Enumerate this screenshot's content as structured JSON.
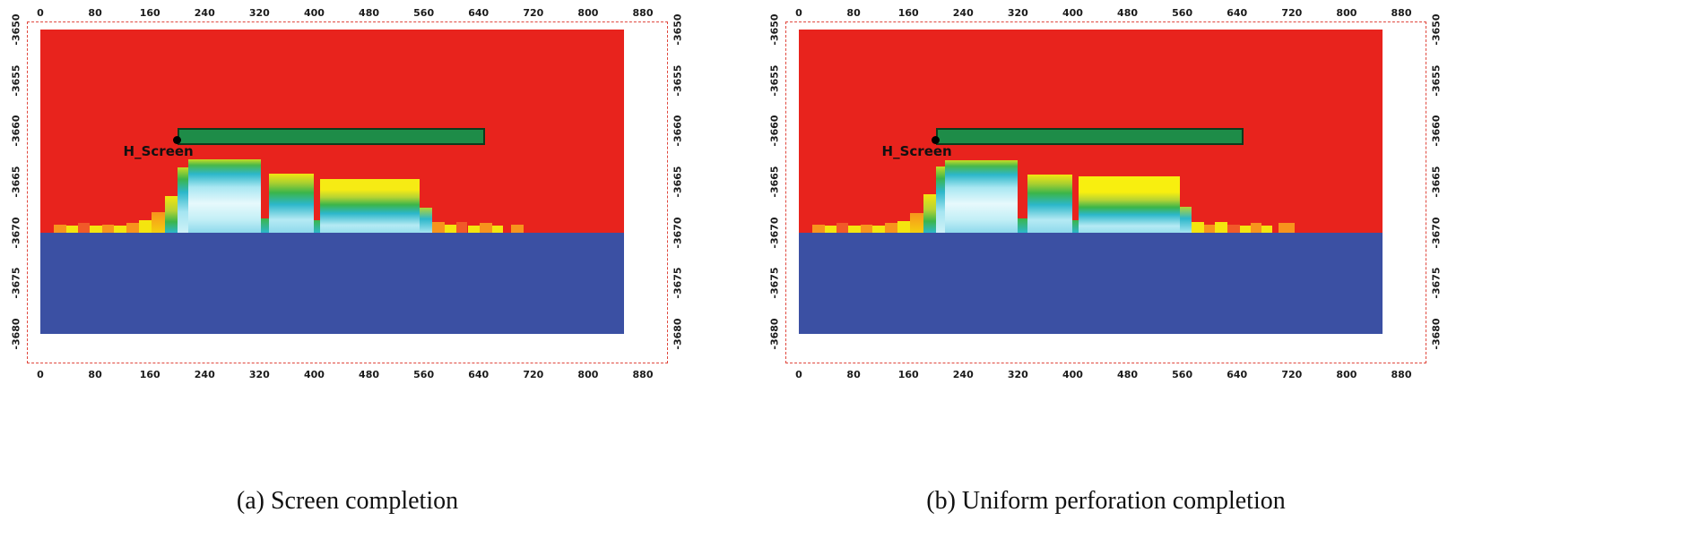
{
  "colors": {
    "frame_dashed": "#e0473d",
    "upper_region_red": "#e8231d",
    "lower_region_blue": "#3b50a3",
    "screen_green": "#1e8c48",
    "screen_border": "#0d3a1c",
    "tick_text": "#1a1a1a"
  },
  "chart_data": [
    {
      "type": "heatmap",
      "title": "(a) Screen completion",
      "xlabel": "",
      "ylabel": "",
      "xlim": [
        0,
        880
      ],
      "ylim": [
        -3680,
        -3650
      ],
      "grid": false,
      "x_ticks": [
        0,
        80,
        160,
        240,
        320,
        400,
        480,
        560,
        640,
        720,
        800,
        880
      ],
      "y_ticks": [
        -3650,
        -3655,
        -3660,
        -3665,
        -3670,
        -3675,
        -3680
      ],
      "regions": [
        {
          "name": "upper-red-region",
          "x0": 0,
          "x1": 852,
          "yt": -3650,
          "yb": -3670,
          "fill": "#e8231d"
        },
        {
          "name": "lower-blue-region",
          "x0": 0,
          "x1": 852,
          "yt": -3670,
          "yb": -3680,
          "fill": "#3b50a3"
        }
      ],
      "well_screen": {
        "label": "H_Screen",
        "x0": 200,
        "x1": 650,
        "yt": -3659.7,
        "yb": -3661.4,
        "fill": "#1e8c48",
        "border": "#0d3a1c",
        "marker": {
          "x": 200,
          "y": -3660.9
        }
      },
      "cells": [
        {
          "x0": 20,
          "x1": 38,
          "yt": -3669.2,
          "yb": -3670,
          "fill": "#f7941d"
        },
        {
          "x0": 38,
          "x1": 55,
          "yt": -3669.3,
          "yb": -3670,
          "fill": "#f4e50f"
        },
        {
          "x0": 55,
          "x1": 72,
          "yt": -3669.1,
          "yb": -3670,
          "fill": "#f15a29"
        },
        {
          "x0": 72,
          "x1": 90,
          "yt": -3669.3,
          "yb": -3670,
          "fill": "#f4e50f"
        },
        {
          "x0": 90,
          "x1": 108,
          "yt": -3669.2,
          "yb": -3670,
          "fill": "#f7941d"
        },
        {
          "x0": 108,
          "x1": 126,
          "yt": -3669.3,
          "yb": -3670,
          "fill": "#f4e50f"
        },
        {
          "x0": 126,
          "x1": 144,
          "yt": -3669.1,
          "yb": -3670,
          "fill": "#f7941d"
        },
        {
          "x0": 144,
          "x1": 162,
          "yt": -3668.8,
          "yb": -3670,
          "fill": "#f4e50f"
        },
        {
          "x0": 162,
          "x1": 182,
          "yt": -3668.0,
          "yb": -3670,
          "stops": [
            [
              "#f7941d",
              0
            ],
            [
              "#f4cf0e",
              100
            ]
          ]
        },
        {
          "x0": 182,
          "x1": 200,
          "yt": -3666.4,
          "yb": -3670,
          "stops": [
            [
              "#f4e50f",
              0
            ],
            [
              "#b5d334",
              40
            ],
            [
              "#3bb54a",
              70
            ],
            [
              "#2cb7ca",
              100
            ]
          ]
        },
        {
          "x0": 200,
          "x1": 216,
          "yt": -3663.6,
          "yb": -3670,
          "stops": [
            [
              "#c6dd26",
              0
            ],
            [
              "#3bb54a",
              18
            ],
            [
              "#2cb7ca",
              38
            ],
            [
              "#a5e5f1",
              68
            ],
            [
              "#cdf1f7",
              100
            ]
          ]
        },
        {
          "x0": 216,
          "x1": 322,
          "yt": -3662.8,
          "yb": -3670,
          "stops": [
            [
              "#c6dd26",
              0
            ],
            [
              "#49b84a",
              8
            ],
            [
              "#2cb7ca",
              20
            ],
            [
              "#a9e7f2",
              38
            ],
            [
              "#e7f9fc",
              60
            ],
            [
              "#c2eff6",
              82
            ],
            [
              "#8ed9ec",
              100
            ]
          ]
        },
        {
          "x0": 322,
          "x1": 334,
          "yt": -3668.6,
          "yb": -3670,
          "stops": [
            [
              "#3bb54a",
              0
            ],
            [
              "#2cb7ca",
              100
            ]
          ]
        },
        {
          "x0": 334,
          "x1": 400,
          "yt": -3664.2,
          "yb": -3670,
          "stops": [
            [
              "#f2e612",
              0
            ],
            [
              "#a8cf30",
              16
            ],
            [
              "#3bb54a",
              32
            ],
            [
              "#2cb7ca",
              52
            ],
            [
              "#b5eaf4",
              78
            ],
            [
              "#8ed9ec",
              100
            ]
          ]
        },
        {
          "x0": 400,
          "x1": 408,
          "yt": -3668.8,
          "yb": -3670,
          "stops": [
            [
              "#3bb54a",
              0
            ],
            [
              "#2cb7ca",
              100
            ]
          ]
        },
        {
          "x0": 408,
          "x1": 554,
          "yt": -3664.7,
          "yb": -3670,
          "stops": [
            [
              "#f6eb14",
              0
            ],
            [
              "#f6eb14",
              20
            ],
            [
              "#b5d334",
              34
            ],
            [
              "#3bb54a",
              48
            ],
            [
              "#2cb7ca",
              64
            ],
            [
              "#b5eaf4",
              86
            ],
            [
              "#98dfee",
              100
            ]
          ]
        },
        {
          "x0": 554,
          "x1": 572,
          "yt": -3667.6,
          "yb": -3670,
          "stops": [
            [
              "#b5d334",
              0
            ],
            [
              "#2cb7ca",
              45
            ],
            [
              "#a5e5f1",
              100
            ]
          ]
        },
        {
          "x0": 572,
          "x1": 590,
          "yt": -3669.0,
          "yb": -3670,
          "fill": "#f7941d"
        },
        {
          "x0": 590,
          "x1": 608,
          "yt": -3669.2,
          "yb": -3670,
          "fill": "#f4e50f"
        },
        {
          "x0": 608,
          "x1": 624,
          "yt": -3669.0,
          "yb": -3670,
          "fill": "#f15a29"
        },
        {
          "x0": 624,
          "x1": 642,
          "yt": -3669.3,
          "yb": -3670,
          "fill": "#f4e50f"
        },
        {
          "x0": 642,
          "x1": 660,
          "yt": -3669.1,
          "yb": -3670,
          "fill": "#f7941d"
        },
        {
          "x0": 660,
          "x1": 676,
          "yt": -3669.3,
          "yb": -3670,
          "fill": "#f4e50f"
        },
        {
          "x0": 688,
          "x1": 706,
          "yt": -3669.2,
          "yb": -3670,
          "fill": "#f7941d"
        }
      ]
    },
    {
      "type": "heatmap",
      "title": "(b) Uniform perforation completion",
      "xlabel": "",
      "ylabel": "",
      "xlim": [
        0,
        880
      ],
      "ylim": [
        -3680,
        -3650
      ],
      "grid": false,
      "x_ticks": [
        0,
        80,
        160,
        240,
        320,
        400,
        480,
        560,
        640,
        720,
        800,
        880
      ],
      "y_ticks": [
        -3650,
        -3655,
        -3660,
        -3665,
        -3670,
        -3675,
        -3680
      ],
      "regions": [
        {
          "name": "upper-red-region",
          "x0": 0,
          "x1": 852,
          "yt": -3650,
          "yb": -3670,
          "fill": "#e8231d"
        },
        {
          "name": "lower-blue-region",
          "x0": 0,
          "x1": 852,
          "yt": -3670,
          "yb": -3680,
          "fill": "#3b50a3"
        }
      ],
      "well_screen": {
        "label": "H_Screen",
        "x0": 200,
        "x1": 650,
        "yt": -3659.7,
        "yb": -3661.4,
        "fill": "#1e8c48",
        "border": "#0d3a1c",
        "marker": {
          "x": 200,
          "y": -3660.9
        }
      },
      "cells": [
        {
          "x0": 20,
          "x1": 38,
          "yt": -3669.2,
          "yb": -3670,
          "fill": "#f7941d"
        },
        {
          "x0": 38,
          "x1": 55,
          "yt": -3669.3,
          "yb": -3670,
          "fill": "#f4e50f"
        },
        {
          "x0": 55,
          "x1": 72,
          "yt": -3669.1,
          "yb": -3670,
          "fill": "#f15a29"
        },
        {
          "x0": 72,
          "x1": 90,
          "yt": -3669.3,
          "yb": -3670,
          "fill": "#f4e50f"
        },
        {
          "x0": 90,
          "x1": 108,
          "yt": -3669.2,
          "yb": -3670,
          "fill": "#f7941d"
        },
        {
          "x0": 108,
          "x1": 126,
          "yt": -3669.3,
          "yb": -3670,
          "fill": "#f4e50f"
        },
        {
          "x0": 126,
          "x1": 144,
          "yt": -3669.1,
          "yb": -3670,
          "fill": "#f7941d"
        },
        {
          "x0": 144,
          "x1": 162,
          "yt": -3668.9,
          "yb": -3670,
          "fill": "#f4e50f"
        },
        {
          "x0": 162,
          "x1": 182,
          "yt": -3668.1,
          "yb": -3670,
          "stops": [
            [
              "#f7941d",
              0
            ],
            [
              "#f4cf0e",
              100
            ]
          ]
        },
        {
          "x0": 182,
          "x1": 200,
          "yt": -3666.2,
          "yb": -3670,
          "stops": [
            [
              "#f4e50f",
              0
            ],
            [
              "#b5d334",
              40
            ],
            [
              "#3bb54a",
              70
            ],
            [
              "#2cb7ca",
              100
            ]
          ]
        },
        {
          "x0": 200,
          "x1": 214,
          "yt": -3663.5,
          "yb": -3670,
          "stops": [
            [
              "#c6dd26",
              0
            ],
            [
              "#3bb54a",
              18
            ],
            [
              "#2cb7ca",
              38
            ],
            [
              "#a5e5f1",
              68
            ],
            [
              "#cdf1f7",
              100
            ]
          ]
        },
        {
          "x0": 214,
          "x1": 320,
          "yt": -3662.9,
          "yb": -3670,
          "stops": [
            [
              "#c6dd26",
              0
            ],
            [
              "#49b84a",
              8
            ],
            [
              "#2cb7ca",
              20
            ],
            [
              "#a9e7f2",
              38
            ],
            [
              "#e7f9fc",
              60
            ],
            [
              "#c2eff6",
              82
            ],
            [
              "#8ed9ec",
              100
            ]
          ]
        },
        {
          "x0": 320,
          "x1": 334,
          "yt": -3668.6,
          "yb": -3670,
          "stops": [
            [
              "#3bb54a",
              0
            ],
            [
              "#2cb7ca",
              100
            ]
          ]
        },
        {
          "x0": 334,
          "x1": 400,
          "yt": -3664.3,
          "yb": -3670,
          "stops": [
            [
              "#f2e612",
              0
            ],
            [
              "#a8cf30",
              16
            ],
            [
              "#3bb54a",
              32
            ],
            [
              "#2cb7ca",
              52
            ],
            [
              "#b5eaf4",
              78
            ],
            [
              "#8ed9ec",
              100
            ]
          ]
        },
        {
          "x0": 400,
          "x1": 408,
          "yt": -3668.8,
          "yb": -3670,
          "stops": [
            [
              "#3bb54a",
              0
            ],
            [
              "#2cb7ca",
              100
            ]
          ]
        },
        {
          "x0": 408,
          "x1": 556,
          "yt": -3664.5,
          "yb": -3670,
          "stops": [
            [
              "#f8ef0f",
              0
            ],
            [
              "#f8ef0f",
              28
            ],
            [
              "#b5d334",
              42
            ],
            [
              "#3bb54a",
              55
            ],
            [
              "#2cb7ca",
              68
            ],
            [
              "#b5eaf4",
              88
            ],
            [
              "#98dfee",
              100
            ]
          ]
        },
        {
          "x0": 556,
          "x1": 574,
          "yt": -3667.5,
          "yb": -3670,
          "stops": [
            [
              "#b5d334",
              0
            ],
            [
              "#2cb7ca",
              45
            ],
            [
              "#a5e5f1",
              100
            ]
          ]
        },
        {
          "x0": 574,
          "x1": 592,
          "yt": -3669.0,
          "yb": -3670,
          "fill": "#f4e50f"
        },
        {
          "x0": 592,
          "x1": 608,
          "yt": -3669.2,
          "yb": -3670,
          "fill": "#f7941d"
        },
        {
          "x0": 608,
          "x1": 626,
          "yt": -3669.0,
          "yb": -3670,
          "fill": "#f4e50f"
        },
        {
          "x0": 626,
          "x1": 644,
          "yt": -3669.2,
          "yb": -3670,
          "fill": "#f15a29"
        },
        {
          "x0": 644,
          "x1": 660,
          "yt": -3669.3,
          "yb": -3670,
          "fill": "#f4e50f"
        },
        {
          "x0": 660,
          "x1": 676,
          "yt": -3669.1,
          "yb": -3670,
          "fill": "#f7941d"
        },
        {
          "x0": 676,
          "x1": 692,
          "yt": -3669.3,
          "yb": -3670,
          "fill": "#f4e50f"
        },
        {
          "x0": 700,
          "x1": 724,
          "yt": -3669.1,
          "yb": -3670,
          "fill": "#f7941d"
        }
      ]
    }
  ]
}
